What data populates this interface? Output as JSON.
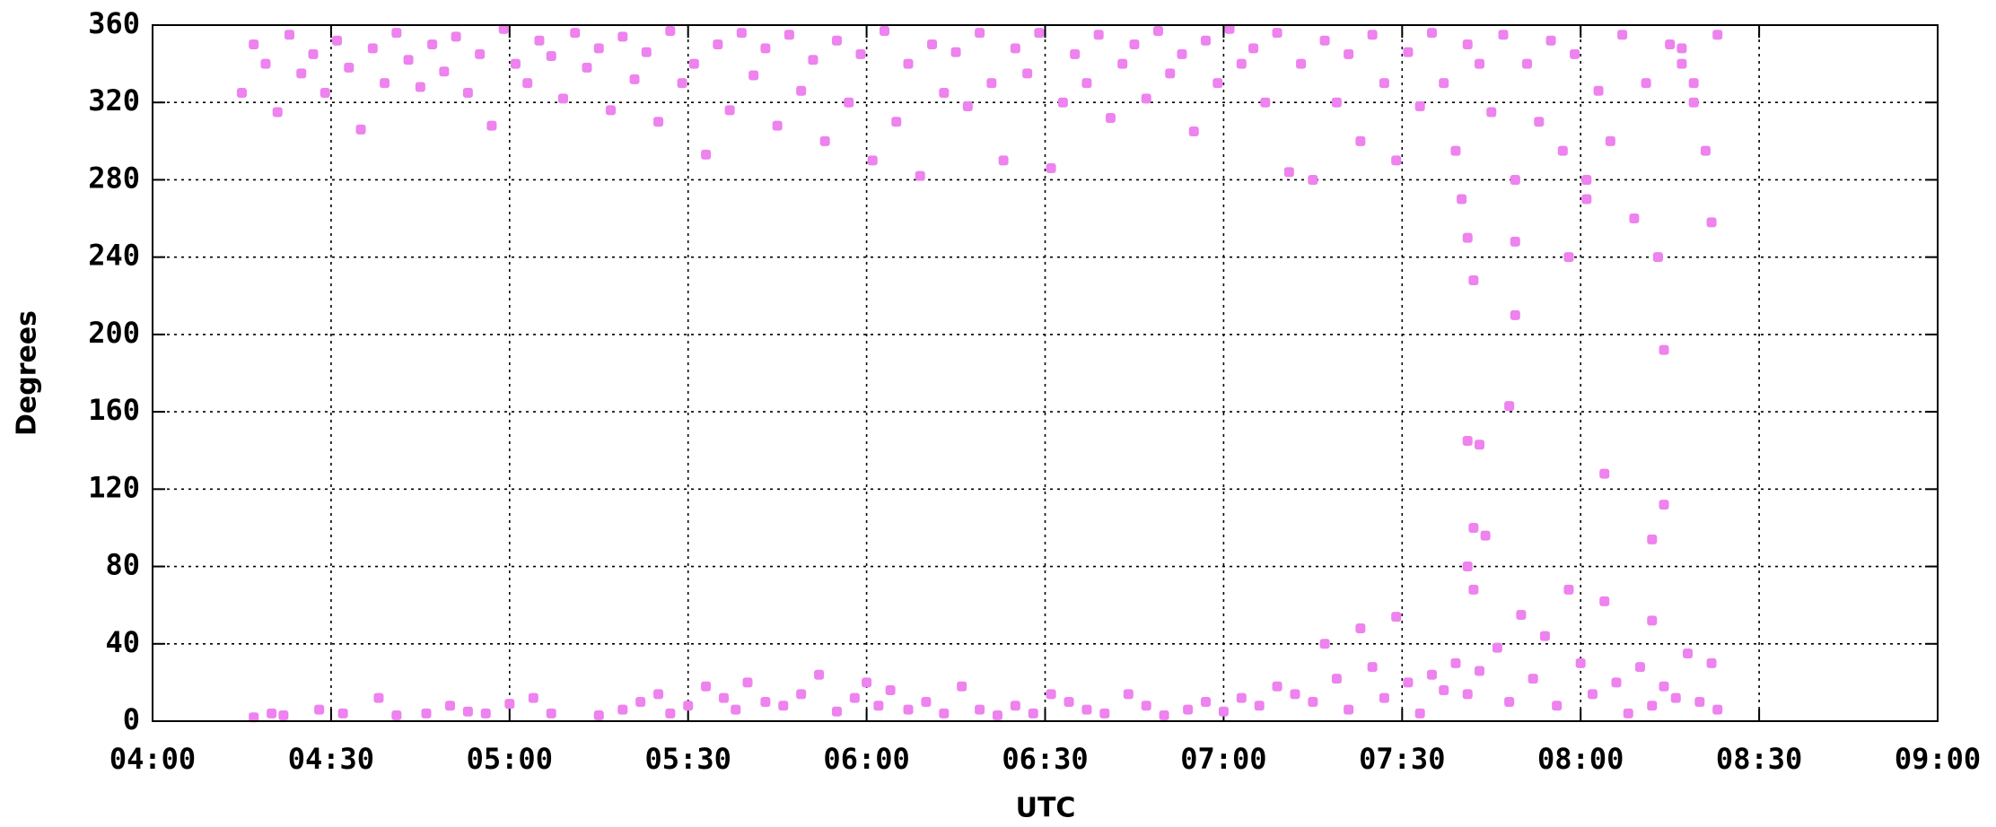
{
  "chart_data": {
    "type": "scatter",
    "xlabel": "UTC",
    "ylabel": "Degrees",
    "color": "#ee82ee",
    "grid": true,
    "xlim": [
      240,
      540
    ],
    "xticks": [
      {
        "value": 240,
        "label": "04:00"
      },
      {
        "value": 270,
        "label": "04:30"
      },
      {
        "value": 300,
        "label": "05:00"
      },
      {
        "value": 330,
        "label": "05:30"
      },
      {
        "value": 360,
        "label": "06:00"
      },
      {
        "value": 390,
        "label": "06:30"
      },
      {
        "value": 420,
        "label": "07:00"
      },
      {
        "value": 450,
        "label": "07:30"
      },
      {
        "value": 480,
        "label": "08:00"
      },
      {
        "value": 510,
        "label": "08:30"
      },
      {
        "value": 540,
        "label": "09:00"
      }
    ],
    "ylim": [
      0,
      360
    ],
    "yticks": [
      0,
      40,
      80,
      120,
      160,
      200,
      240,
      280,
      320,
      360
    ],
    "x": [
      255,
      257,
      259,
      261,
      263,
      265,
      267,
      269,
      271,
      273,
      275,
      277,
      279,
      281,
      283,
      285,
      287,
      289,
      291,
      293,
      295,
      297,
      299,
      301,
      303,
      305,
      307,
      309,
      311,
      313,
      315,
      317,
      319,
      321,
      323,
      325,
      327,
      329,
      331,
      333,
      335,
      337,
      339,
      341,
      343,
      345,
      347,
      349,
      351,
      353,
      355,
      357,
      359,
      361,
      363,
      365,
      367,
      369,
      371,
      373,
      375,
      377,
      379,
      381,
      383,
      385,
      387,
      389,
      391,
      393,
      395,
      397,
      399,
      401,
      403,
      405,
      407,
      409,
      411,
      413,
      415,
      417,
      419,
      421,
      423,
      425,
      427,
      429,
      431,
      433,
      435,
      437,
      439,
      441,
      443,
      445,
      447,
      449,
      451,
      453,
      455,
      457,
      459,
      461,
      463,
      465,
      467,
      469,
      471,
      473,
      475,
      477,
      479,
      481,
      483,
      485,
      487,
      489,
      491,
      493,
      495,
      497,
      499,
      501,
      503,
      502,
      499,
      497,
      257,
      260,
      262,
      268,
      272,
      278,
      281,
      286,
      290,
      293,
      296,
      300,
      304,
      307,
      315,
      319,
      322,
      325,
      327,
      330,
      333,
      336,
      338,
      340,
      343,
      346,
      349,
      352,
      355,
      358,
      360,
      362,
      364,
      367,
      370,
      373,
      376,
      379,
      382,
      385,
      388,
      391,
      394,
      397,
      400,
      404,
      407,
      410,
      414,
      417,
      420,
      423,
      426,
      429,
      432,
      435,
      437,
      439,
      441,
      443,
      445,
      447,
      449,
      451,
      453,
      455,
      457,
      459,
      461,
      463,
      466,
      468,
      470,
      472,
      474,
      476,
      478,
      480,
      482,
      484,
      486,
      488,
      490,
      492,
      494,
      496,
      498,
      500,
      502,
      503,
      460,
      461,
      462,
      461,
      462,
      461,
      462,
      464,
      463,
      469,
      469,
      469,
      468,
      484,
      494,
      494,
      492,
      492,
      478,
      481
    ],
    "values": [
      325,
      350,
      340,
      315,
      355,
      335,
      345,
      325,
      352,
      338,
      306,
      348,
      330,
      356,
      342,
      328,
      350,
      336,
      354,
      325,
      345,
      308,
      358,
      340,
      330,
      352,
      344,
      322,
      356,
      338,
      348,
      316,
      354,
      332,
      346,
      310,
      357,
      330,
      340,
      293,
      350,
      316,
      356,
      334,
      348,
      308,
      355,
      326,
      342,
      300,
      352,
      320,
      345,
      290,
      357,
      310,
      340,
      282,
      350,
      325,
      346,
      318,
      356,
      330,
      290,
      348,
      335,
      356,
      286,
      320,
      345,
      330,
      355,
      312,
      340,
      350,
      322,
      357,
      335,
      345,
      305,
      352,
      330,
      358,
      340,
      348,
      320,
      356,
      284,
      340,
      280,
      352,
      320,
      345,
      300,
      355,
      330,
      290,
      346,
      318,
      356,
      330,
      295,
      350,
      340,
      315,
      355,
      280,
      340,
      310,
      352,
      295,
      345,
      270,
      326,
      300,
      355,
      260,
      330,
      240,
      350,
      340,
      320,
      295,
      355,
      258,
      330,
      348,
      2,
      4,
      3,
      6,
      4,
      12,
      3,
      4,
      8,
      5,
      4,
      9,
      12,
      4,
      3,
      6,
      10,
      14,
      4,
      8,
      18,
      12,
      6,
      20,
      10,
      8,
      14,
      24,
      5,
      12,
      20,
      8,
      16,
      6,
      10,
      4,
      18,
      6,
      3,
      8,
      4,
      14,
      10,
      6,
      4,
      14,
      8,
      3,
      6,
      10,
      5,
      12,
      8,
      18,
      14,
      10,
      40,
      22,
      6,
      48,
      28,
      12,
      54,
      20,
      4,
      24,
      16,
      30,
      14,
      26,
      38,
      10,
      55,
      22,
      44,
      8,
      68,
      30,
      14,
      62,
      20,
      4,
      28,
      8,
      18,
      12,
      35,
      10,
      30,
      6,
      270,
      250,
      228,
      145,
      100,
      80,
      68,
      96,
      143,
      280,
      248,
      210,
      163,
      128,
      192,
      112,
      94,
      52,
      240,
      280
    ]
  }
}
